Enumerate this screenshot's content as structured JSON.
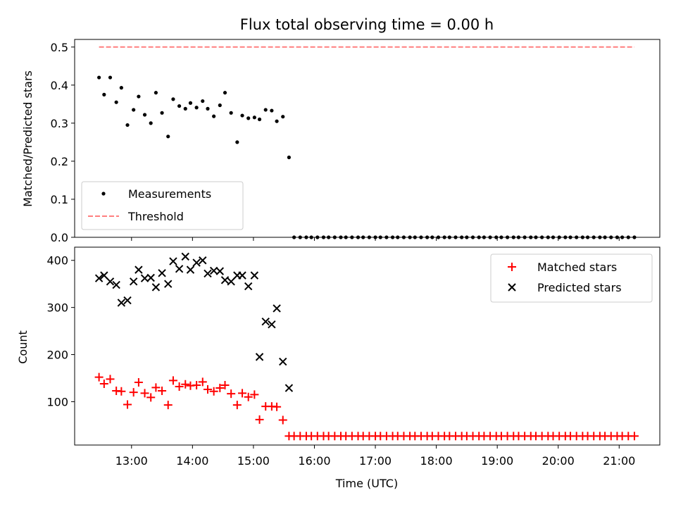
{
  "chart_data": {
    "title": "Flux total observing time = 0.00 h",
    "xlabel": "Time (UTC)",
    "xlim": [
      "12:04",
      "21:40"
    ],
    "x_ticks": [
      "13:00",
      "14:00",
      "15:00",
      "16:00",
      "17:00",
      "18:00",
      "19:00",
      "20:00",
      "21:00"
    ],
    "panels": [
      {
        "type": "scatter",
        "ylabel": "Matched/Predicted stars",
        "ylim": [
          0,
          0.52
        ],
        "y_ticks": [
          "0.0",
          "0.1",
          "0.2",
          "0.3",
          "0.4",
          "0.5"
        ],
        "legend_position": "lower-left",
        "series": [
          {
            "name": "Measurements",
            "marker": "dot",
            "color": "#000000",
            "x": [
              "12:28",
              "12:33",
              "12:39",
              "12:45",
              "12:50",
              "12:56",
              "13:02",
              "13:07",
              "13:13",
              "13:19",
              "13:24",
              "13:30",
              "13:36",
              "13:41",
              "13:47",
              "13:53",
              "13:58",
              "14:04",
              "14:10",
              "14:15",
              "14:21",
              "14:27",
              "14:32",
              "14:38",
              "14:44",
              "14:49",
              "14:55",
              "15:01",
              "15:06",
              "15:12",
              "15:18",
              "15:23",
              "15:29",
              "15:35",
              "15:40",
              "15:46",
              "15:52",
              "15:57",
              "16:03",
              "16:09",
              "16:14",
              "16:20",
              "16:26",
              "16:31",
              "16:37",
              "16:43",
              "16:48",
              "16:54",
              "17:00",
              "17:05",
              "17:11",
              "17:17",
              "17:22",
              "17:28",
              "17:34",
              "17:39",
              "17:45",
              "17:51",
              "17:56",
              "18:02",
              "18:08",
              "18:13",
              "18:19",
              "18:25",
              "18:30",
              "18:36",
              "18:42",
              "18:47",
              "18:53",
              "18:59",
              "19:04",
              "19:10",
              "19:16",
              "19:21",
              "19:27",
              "19:33",
              "19:38",
              "19:44",
              "19:50",
              "19:55",
              "20:01",
              "20:07",
              "20:12",
              "20:18",
              "20:24",
              "20:29",
              "20:35",
              "20:41",
              "20:46",
              "20:52",
              "20:58",
              "21:03",
              "21:09",
              "21:15"
            ],
            "y": [
              0.42,
              0.375,
              0.42,
              0.355,
              0.393,
              0.295,
              0.335,
              0.37,
              0.322,
              0.3,
              0.38,
              0.327,
              0.265,
              0.363,
              0.345,
              0.338,
              0.353,
              0.341,
              0.358,
              0.338,
              0.318,
              0.347,
              0.38,
              0.327,
              0.25,
              0.32,
              0.313,
              0.315,
              0.31,
              0.335,
              0.333,
              0.305,
              0.317,
              0.21,
              0,
              0,
              0,
              0,
              0,
              0,
              0,
              0,
              0,
              0,
              0,
              0,
              0,
              0,
              0,
              0,
              0,
              0,
              0,
              0,
              0,
              0,
              0,
              0,
              0,
              0,
              0,
              0,
              0,
              0,
              0,
              0,
              0,
              0,
              0,
              0,
              0,
              0,
              0,
              0,
              0,
              0,
              0,
              0,
              0,
              0,
              0,
              0,
              0,
              0,
              0,
              0,
              0,
              0,
              0,
              0,
              0,
              0,
              0,
              0
            ]
          },
          {
            "name": "Threshold",
            "type": "line",
            "style": "dashed",
            "color": "#ff7f7f",
            "x": [
              "12:28",
              "21:15"
            ],
            "y": [
              0.5,
              0.5
            ]
          }
        ]
      },
      {
        "type": "scatter",
        "ylabel": "Count",
        "ylim": [
          8,
          428
        ],
        "y_ticks": [
          "100",
          "200",
          "300",
          "400"
        ],
        "legend_position": "upper-right",
        "series": [
          {
            "name": "Matched stars",
            "marker": "plus",
            "color": "#ff0000",
            "x": [
              "12:28",
              "12:33",
              "12:39",
              "12:45",
              "12:50",
              "12:56",
              "13:02",
              "13:07",
              "13:13",
              "13:19",
              "13:24",
              "13:30",
              "13:36",
              "13:41",
              "13:47",
              "13:53",
              "13:58",
              "14:04",
              "14:10",
              "14:15",
              "14:21",
              "14:27",
              "14:32",
              "14:38",
              "14:44",
              "14:49",
              "14:55",
              "15:01",
              "15:06",
              "15:12",
              "15:18",
              "15:23",
              "15:29",
              "15:35",
              "15:40",
              "15:46",
              "15:52",
              "15:57",
              "16:03",
              "16:09",
              "16:14",
              "16:20",
              "16:26",
              "16:31",
              "16:37",
              "16:43",
              "16:48",
              "16:54",
              "17:00",
              "17:05",
              "17:11",
              "17:17",
              "17:22",
              "17:28",
              "17:34",
              "17:39",
              "17:45",
              "17:51",
              "17:56",
              "18:02",
              "18:08",
              "18:13",
              "18:19",
              "18:25",
              "18:30",
              "18:36",
              "18:42",
              "18:47",
              "18:53",
              "18:59",
              "19:04",
              "19:10",
              "19:16",
              "19:21",
              "19:27",
              "19:33",
              "19:38",
              "19:44",
              "19:50",
              "19:55",
              "20:01",
              "20:07",
              "20:12",
              "20:18",
              "20:24",
              "20:29",
              "20:35",
              "20:41",
              "20:46",
              "20:52",
              "20:58",
              "21:03",
              "21:09",
              "21:15"
            ],
            "y": [
              152,
              138,
              148,
              123,
              122,
              94,
              120,
              141,
              118,
              109,
              130,
              123,
              93,
              145,
              132,
              137,
              134,
              135,
              142,
              126,
              122,
              129,
              135,
              117,
              93,
              118,
              110,
              115,
              62,
              90,
              90,
              89,
              61,
              27,
              27,
              27,
              27,
              27,
              27,
              27,
              27,
              27,
              27,
              27,
              27,
              27,
              27,
              27,
              27,
              27,
              27,
              27,
              27,
              27,
              27,
              27,
              27,
              27,
              27,
              27,
              27,
              27,
              27,
              27,
              27,
              27,
              27,
              27,
              27,
              27,
              27,
              27,
              27,
              27,
              27,
              27,
              27,
              27,
              27,
              27,
              27,
              27,
              27,
              27,
              27,
              27,
              27,
              27,
              27,
              27,
              27,
              27,
              27,
              27
            ]
          },
          {
            "name": "Predicted stars",
            "marker": "x",
            "color": "#000000",
            "x": [
              "12:28",
              "12:33",
              "12:39",
              "12:45",
              "12:50",
              "12:56",
              "13:02",
              "13:07",
              "13:13",
              "13:19",
              "13:24",
              "13:30",
              "13:36",
              "13:41",
              "13:47",
              "13:53",
              "13:58",
              "14:04",
              "14:10",
              "14:15",
              "14:21",
              "14:27",
              "14:32",
              "14:38",
              "14:44",
              "14:49",
              "14:55",
              "15:01",
              "15:06",
              "15:12",
              "15:18",
              "15:23",
              "15:29",
              "15:35"
            ],
            "y": [
              362,
              368,
              355,
              348,
              310,
              315,
              355,
              380,
              362,
              363,
              343,
              373,
              350,
              398,
              382,
              408,
              380,
              395,
              400,
              372,
              378,
              377,
              358,
              355,
              368,
              368,
              345,
              368,
              195,
              270,
              264,
              298,
              185,
              129
            ]
          }
        ]
      }
    ]
  }
}
